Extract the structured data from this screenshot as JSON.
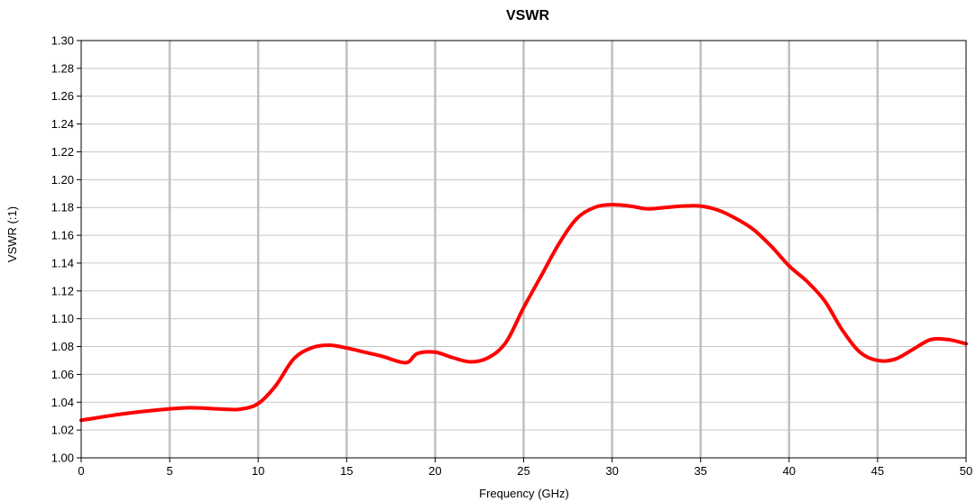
{
  "chart_data": {
    "type": "line",
    "title": "VSWR",
    "xlabel": "Frequency (GHz)",
    "ylabel": "VSWR (:1)",
    "xlim": [
      0,
      50
    ],
    "ylim": [
      1.0,
      1.3
    ],
    "xticks": [
      "0",
      "5",
      "10",
      "15",
      "20",
      "25",
      "30",
      "35",
      "40",
      "45",
      "50"
    ],
    "yticks": [
      "1.00",
      "1.02",
      "1.04",
      "1.06",
      "1.08",
      "1.10",
      "1.12",
      "1.14",
      "1.16",
      "1.18",
      "1.20",
      "1.22",
      "1.24",
      "1.26",
      "1.28",
      "1.30"
    ],
    "grid": {
      "vertical": true,
      "horizontal": true
    },
    "legend": "none",
    "colors": {
      "line": "#ff0000",
      "vgrid": "#c0c0c0",
      "hgrid": "#c8c8c8",
      "frame": "#000000"
    },
    "series": [
      {
        "x": [
          0,
          2,
          4,
          6,
          8,
          9,
          10,
          11,
          12,
          13,
          14,
          15,
          16,
          17,
          18,
          18.5,
          19,
          20,
          21,
          22,
          23,
          24,
          25,
          26,
          27,
          28,
          29,
          30,
          31,
          32,
          33,
          34,
          35,
          36,
          37,
          38,
          39,
          40,
          41,
          42,
          43,
          44,
          45,
          46,
          47,
          48,
          49,
          50
        ],
        "y": [
          1.027,
          1.031,
          1.034,
          1.036,
          1.035,
          1.035,
          1.039,
          1.052,
          1.071,
          1.079,
          1.081,
          1.079,
          1.076,
          1.073,
          1.069,
          1.069,
          1.075,
          1.076,
          1.072,
          1.069,
          1.072,
          1.083,
          1.108,
          1.131,
          1.154,
          1.172,
          1.18,
          1.182,
          1.181,
          1.179,
          1.18,
          1.181,
          1.181,
          1.178,
          1.172,
          1.164,
          1.152,
          1.138,
          1.127,
          1.113,
          1.092,
          1.076,
          1.07,
          1.071,
          1.078,
          1.085,
          1.085,
          1.082
        ]
      }
    ]
  }
}
